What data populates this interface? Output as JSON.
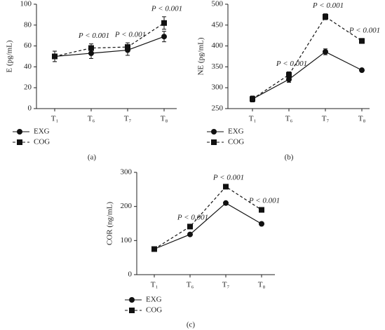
{
  "chart_data": [
    {
      "type": "line",
      "ylabel": "E (pg/mL)",
      "caption": "(a)",
      "categories": [
        "T₁",
        "T₆",
        "T₇",
        "T₈"
      ],
      "ylim": [
        0,
        100
      ],
      "yticks": [
        0,
        20,
        40,
        60,
        80,
        100
      ],
      "series": [
        {
          "name": "EXG",
          "color": "#111111",
          "marker": "circle",
          "dashed": false,
          "values": [
            50,
            53,
            56,
            69
          ],
          "errors": [
            5,
            5,
            5,
            5
          ]
        },
        {
          "name": "COG",
          "color": "#111111",
          "marker": "square",
          "dashed": true,
          "values": [
            50,
            58,
            59,
            82
          ],
          "errors": [
            5,
            4,
            4,
            6
          ]
        }
      ],
      "annotations": [
        {
          "text": "P < 0.001",
          "x": "T₆"
        },
        {
          "text": "P < 0.001",
          "x": "T₇"
        },
        {
          "text": "P < 0.001",
          "x": "T₈"
        }
      ]
    },
    {
      "type": "line",
      "ylabel": "NE (pg/mL)",
      "caption": "(b)",
      "categories": [
        "T₁",
        "T₆",
        "T₇",
        "T₈"
      ],
      "ylim": [
        250,
        500
      ],
      "yticks": [
        250,
        300,
        350,
        400,
        450,
        500
      ],
      "series": [
        {
          "name": "EXG",
          "color": "#111111",
          "marker": "circle",
          "dashed": false,
          "values": [
            273,
            320,
            386,
            342
          ],
          "errors": [
            7,
            7,
            7,
            3
          ]
        },
        {
          "name": "COG",
          "color": "#111111",
          "marker": "square",
          "dashed": true,
          "values": [
            273,
            331,
            470,
            412
          ],
          "errors": [
            7,
            7,
            7,
            6
          ]
        }
      ],
      "annotations": [
        {
          "text": "P < 0.001",
          "x": "T₆"
        },
        {
          "text": "P < 0.001",
          "x": "T₇"
        },
        {
          "text": "P < 0.001",
          "x": "T₈"
        }
      ]
    },
    {
      "type": "line",
      "ylabel": "COR (ng/mL)",
      "caption": "(c)",
      "categories": [
        "T₁",
        "T₆",
        "T₇",
        "T₈"
      ],
      "ylim": [
        0,
        300
      ],
      "yticks": [
        0,
        100,
        200,
        300
      ],
      "series": [
        {
          "name": "EXG",
          "color": "#111111",
          "marker": "circle",
          "dashed": false,
          "values": [
            75,
            118,
            210,
            149
          ],
          "errors": [
            3,
            3,
            3,
            3
          ]
        },
        {
          "name": "COG",
          "color": "#111111",
          "marker": "square",
          "dashed": true,
          "values": [
            75,
            141,
            258,
            190
          ],
          "errors": [
            3,
            3,
            3,
            3
          ]
        }
      ],
      "annotations": [
        {
          "text": "P < 0.001",
          "x": "T₆"
        },
        {
          "text": "P < 0.001",
          "x": "T₇"
        },
        {
          "text": "P < 0.001",
          "x": "T₈"
        }
      ]
    }
  ]
}
